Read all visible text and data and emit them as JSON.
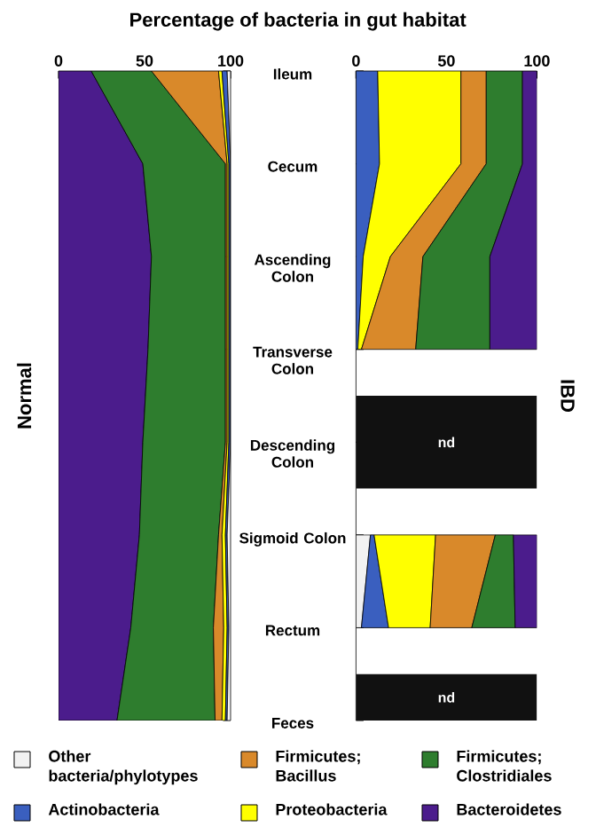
{
  "chart_data": [
    {
      "type": "area",
      "orientation": "horizontal",
      "stacked": true,
      "title": "Percentage of bacteria in gut habitat",
      "ylabel": "Normal",
      "categories": [
        "Ileum",
        "Cecum",
        "Ascending Colon",
        "Transverse Colon",
        "Descending Colon",
        "Sigmoid Colon",
        "Rectum",
        "Feces"
      ],
      "xlim": [
        0,
        100
      ],
      "xticks": [
        0,
        50,
        100
      ],
      "series": [
        {
          "color": "#4b1c8c",
          "values": [
            19,
            49,
            54,
            52,
            49,
            47,
            42,
            34
          ]
        },
        {
          "color": "#2e7d2e",
          "values": [
            35,
            48,
            43,
            45,
            48,
            46,
            48,
            57
          ]
        },
        {
          "color": "#d9892a",
          "values": [
            39,
            1,
            1,
            1,
            1,
            2,
            6,
            4
          ]
        },
        {
          "color": "#ffff00",
          "values": [
            2,
            1,
            1,
            1,
            1,
            2,
            2,
            2
          ]
        },
        {
          "color": "#3a5fbf",
          "values": [
            3,
            1,
            1,
            1,
            1,
            1,
            1,
            1
          ]
        },
        {
          "color": "#f2f2f2",
          "values": [
            2,
            0,
            0,
            0,
            0,
            2,
            1,
            2
          ]
        }
      ]
    },
    {
      "type": "area",
      "orientation": "horizontal",
      "stacked": true,
      "ylabel": "IBD",
      "legend": "bottom",
      "tick_labels": "x",
      "categories": [
        "Ileum",
        "Cecum",
        "Ascending Colon",
        "Transverse Colon",
        "Descending Colon",
        "Sigmoid Colon",
        "Rectum",
        "Feces"
      ],
      "xlim": [
        0,
        100
      ],
      "xticks": [
        0,
        50,
        100
      ],
      "series": [
        {
          "name": "Other bacteria/phylotypes",
          "color": "#f2f2f2",
          "values": [
            null,
            null,
            null,
            null,
            null,
            8,
            3,
            null
          ]
        },
        {
          "name": "Actinobacteria",
          "color": "#3a5fbf",
          "values": [
            12,
            13,
            4,
            1,
            null,
            2,
            15,
            null
          ]
        },
        {
          "name": "Proteobacteria",
          "color": "#ffff00",
          "values": [
            46,
            45,
            15,
            2,
            null,
            34,
            23,
            null
          ]
        },
        {
          "name": "Firmicutes; Bacillus",
          "color": "#d9892a",
          "values": [
            14,
            14,
            18,
            30,
            null,
            33,
            23,
            null
          ]
        },
        {
          "name": "Firmicutes; Clostridiales",
          "color": "#2e7d2e",
          "values": [
            20,
            20,
            37,
            41,
            null,
            10,
            24,
            null
          ]
        },
        {
          "name": "Bacteroidetes",
          "color": "#4b1c8c",
          "values": [
            8,
            8,
            26,
            26,
            null,
            13,
            12,
            null
          ]
        }
      ],
      "bands": [
        {
          "axis": "y",
          "from": "Descending Colon",
          "to": "Descending Colon",
          "label": "nd",
          "color": "#111111"
        },
        {
          "axis": "y",
          "from": "Feces",
          "to": "Feces",
          "label": "nd",
          "color": "#111111"
        }
      ]
    }
  ]
}
